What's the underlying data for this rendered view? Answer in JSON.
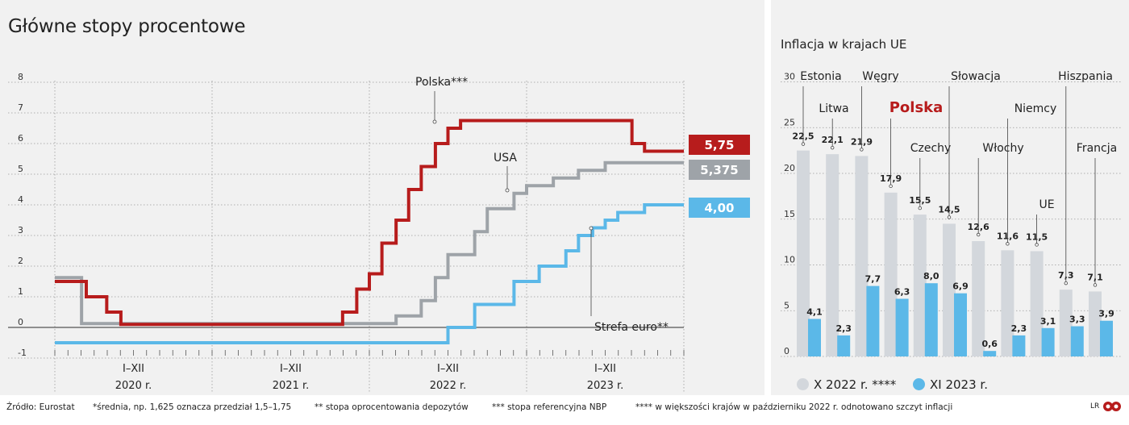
{
  "title": "Główne stopy procentowe",
  "subtitle": "Inflacja w krajach UE",
  "chart_data": [
    {
      "type": "line",
      "title": "Główne stopy procentowe",
      "ylim": [
        -1,
        8
      ],
      "y_ticks": [
        "-1",
        "0",
        "1",
        "2",
        "3",
        "4",
        "5",
        "6",
        "7",
        "8"
      ],
      "x_range": [
        2020.0,
        2024.0
      ],
      "x_period_labels": [
        {
          "range": "I–XII",
          "year": "2020 r."
        },
        {
          "range": "I–XII",
          "year": "2021 r."
        },
        {
          "range": "I–XII",
          "year": "2022 r."
        },
        {
          "range": "I–XII",
          "year": "2023 r."
        }
      ],
      "grid": true,
      "series": [
        {
          "name": "Polska***",
          "color": "#b71c1c",
          "end_label": "5,75",
          "points": [
            [
              2020.0,
              1.5
            ],
            [
              2020.2,
              1.0
            ],
            [
              2020.33,
              0.5
            ],
            [
              2020.42,
              0.1
            ],
            [
              2021.83,
              0.5
            ],
            [
              2021.92,
              1.25
            ],
            [
              2022.0,
              1.75
            ],
            [
              2022.08,
              2.75
            ],
            [
              2022.17,
              3.5
            ],
            [
              2022.25,
              4.5
            ],
            [
              2022.33,
              5.25
            ],
            [
              2022.42,
              6.0
            ],
            [
              2022.5,
              6.5
            ],
            [
              2022.58,
              6.75
            ],
            [
              2023.67,
              6.0
            ],
            [
              2023.75,
              5.75
            ],
            [
              2024.0,
              5.75
            ]
          ]
        },
        {
          "name": "USA",
          "color": "#9ea3a8",
          "end_label": "5,375",
          "points": [
            [
              2020.0,
              1.625
            ],
            [
              2020.17,
              0.125
            ],
            [
              2022.17,
              0.375
            ],
            [
              2022.33,
              0.875
            ],
            [
              2022.42,
              1.625
            ],
            [
              2022.5,
              2.375
            ],
            [
              2022.67,
              3.125
            ],
            [
              2022.75,
              3.875
            ],
            [
              2022.92,
              4.375
            ],
            [
              2023.0,
              4.625
            ],
            [
              2023.17,
              4.875
            ],
            [
              2023.33,
              5.125
            ],
            [
              2023.5,
              5.375
            ],
            [
              2024.0,
              5.375
            ]
          ]
        },
        {
          "name": "Strefa euro**",
          "color": "#5bb8e8",
          "end_label": "4,00",
          "points": [
            [
              2020.0,
              -0.5
            ],
            [
              2022.5,
              0.0
            ],
            [
              2022.67,
              0.75
            ],
            [
              2022.92,
              1.5
            ],
            [
              2023.08,
              2.0
            ],
            [
              2023.25,
              2.5
            ],
            [
              2023.33,
              3.0
            ],
            [
              2023.42,
              3.25
            ],
            [
              2023.5,
              3.5
            ],
            [
              2023.58,
              3.75
            ],
            [
              2023.75,
              4.0
            ],
            [
              2024.0,
              4.0
            ]
          ]
        }
      ]
    },
    {
      "type": "bar",
      "title": "Inflacja w krajach UE",
      "ylim": [
        0,
        30
      ],
      "y_ticks": [
        "0",
        "5",
        "10",
        "15",
        "20",
        "25",
        "30"
      ],
      "categories": [
        "Estonia",
        "Litwa",
        "Węgry",
        "Polska",
        "Czechy",
        "Słowacja",
        "Włochy",
        "Niemcy",
        "UE",
        "Hiszpania",
        "Francja"
      ],
      "series": [
        {
          "name": "X 2022 r. ****",
          "color": "#d3d7dc",
          "values": [
            22.5,
            22.1,
            21.9,
            17.9,
            15.5,
            14.5,
            12.6,
            11.6,
            11.5,
            7.3,
            7.1
          ],
          "labels": [
            "22,5",
            "22,1",
            "21,9",
            "17,9",
            "15,5",
            "14,5",
            "12,6",
            "11,6",
            "11,5",
            "7,3",
            "7,1"
          ]
        },
        {
          "name": "XI 2023 r.",
          "color": "#5bb8e8",
          "values": [
            4.1,
            2.3,
            7.7,
            6.3,
            8.0,
            6.9,
            0.6,
            2.3,
            3.1,
            3.3,
            3.9
          ],
          "labels": [
            "4,1",
            "2,3",
            "7,7",
            "6,3",
            "8,0",
            "6,9",
            "0,6",
            "2,3",
            "3,1",
            "3,3",
            "3,9"
          ]
        }
      ],
      "highlight_category": "Polska",
      "highlight_color": "#b71c1c"
    }
  ],
  "footer": {
    "source": "Źródło: Eurostat",
    "note1": "*średnia, np. 1,625 oznacza przedział 1,5–1,75",
    "note2": "** stopa oprocentowania depozytów",
    "note3": "*** stopa referencyjna NBP",
    "note4": "**** w większości krajów w październiku 2022 r. odnotowano szczyt inflacji",
    "credit": "LR"
  }
}
